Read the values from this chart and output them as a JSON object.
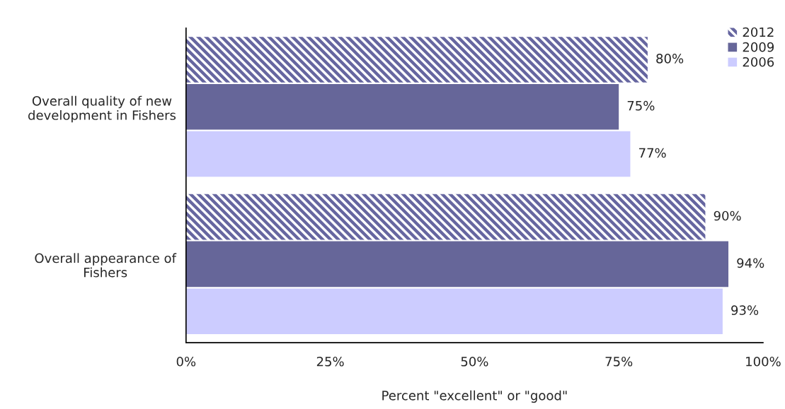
{
  "chart_data": {
    "type": "bar",
    "orientation": "horizontal",
    "xlabel": "Percent \"excellent\" or \"good\"",
    "categories": [
      "Overall quality of new\ndevelopment in Fishers",
      "Overall appearance of\nFishers"
    ],
    "series": [
      {
        "name": "2012",
        "color": "#6666a0",
        "values": [
          80,
          90
        ],
        "value_labels": [
          "80%",
          "90%"
        ]
      },
      {
        "name": "2009",
        "color": "#666699",
        "values": [
          75,
          94
        ],
        "value_labels": [
          "75%",
          "94%"
        ]
      },
      {
        "name": "2006",
        "color": "#ccccff",
        "values": [
          77,
          93
        ],
        "value_labels": [
          "77%",
          "93%"
        ]
      }
    ],
    "xlim": [
      0,
      100
    ],
    "xticks": [
      {
        "value": 0,
        "label": "0%"
      },
      {
        "value": 25,
        "label": "25%"
      },
      {
        "value": 50,
        "label": "50%"
      },
      {
        "value": 75,
        "label": "75%"
      },
      {
        "value": 100,
        "label": "100%"
      }
    ],
    "grid": false,
    "legend": "top right"
  }
}
